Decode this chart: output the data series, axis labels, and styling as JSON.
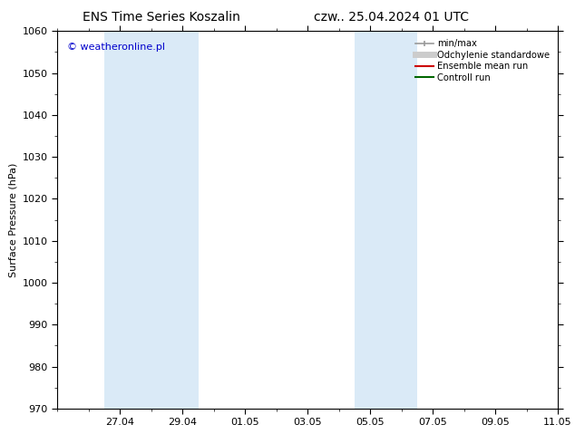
{
  "title_left": "ENS Time Series Koszalin",
  "title_right": "czw.. 25.04.2024 01 UTC",
  "ylabel": "Surface Pressure (hPa)",
  "ylim": [
    970,
    1060
  ],
  "yticks": [
    970,
    980,
    990,
    1000,
    1010,
    1020,
    1030,
    1040,
    1050,
    1060
  ],
  "xtick_labels": [
    "27.04",
    "29.04",
    "01.05",
    "03.05",
    "05.05",
    "07.05",
    "09.05",
    "11.05"
  ],
  "xtick_positions": [
    2,
    4,
    6,
    8,
    10,
    12,
    14,
    16
  ],
  "xlim": [
    0,
    16
  ],
  "shaded_bands": [
    {
      "x_start": 1.5,
      "x_end": 4.5
    },
    {
      "x_start": 9.5,
      "x_end": 11.5
    }
  ],
  "shaded_color": "#daeaf7",
  "watermark": "© weatheronline.pl",
  "watermark_color": "#0000cc",
  "legend_items": [
    {
      "label": "min/max",
      "color": "#999999",
      "lw": 1.2,
      "style": "solid",
      "type": "errbar"
    },
    {
      "label": "Odchylenie standardowe",
      "color": "#cccccc",
      "lw": 5,
      "style": "solid",
      "type": "line"
    },
    {
      "label": "Ensemble mean run",
      "color": "#cc0000",
      "lw": 1.5,
      "style": "solid",
      "type": "line"
    },
    {
      "label": "Controll run",
      "color": "#006600",
      "lw": 1.5,
      "style": "solid",
      "type": "line"
    }
  ],
  "background_color": "#ffffff",
  "title_fontsize": 10,
  "label_fontsize": 8,
  "tick_fontsize": 8,
  "watermark_fontsize": 8
}
